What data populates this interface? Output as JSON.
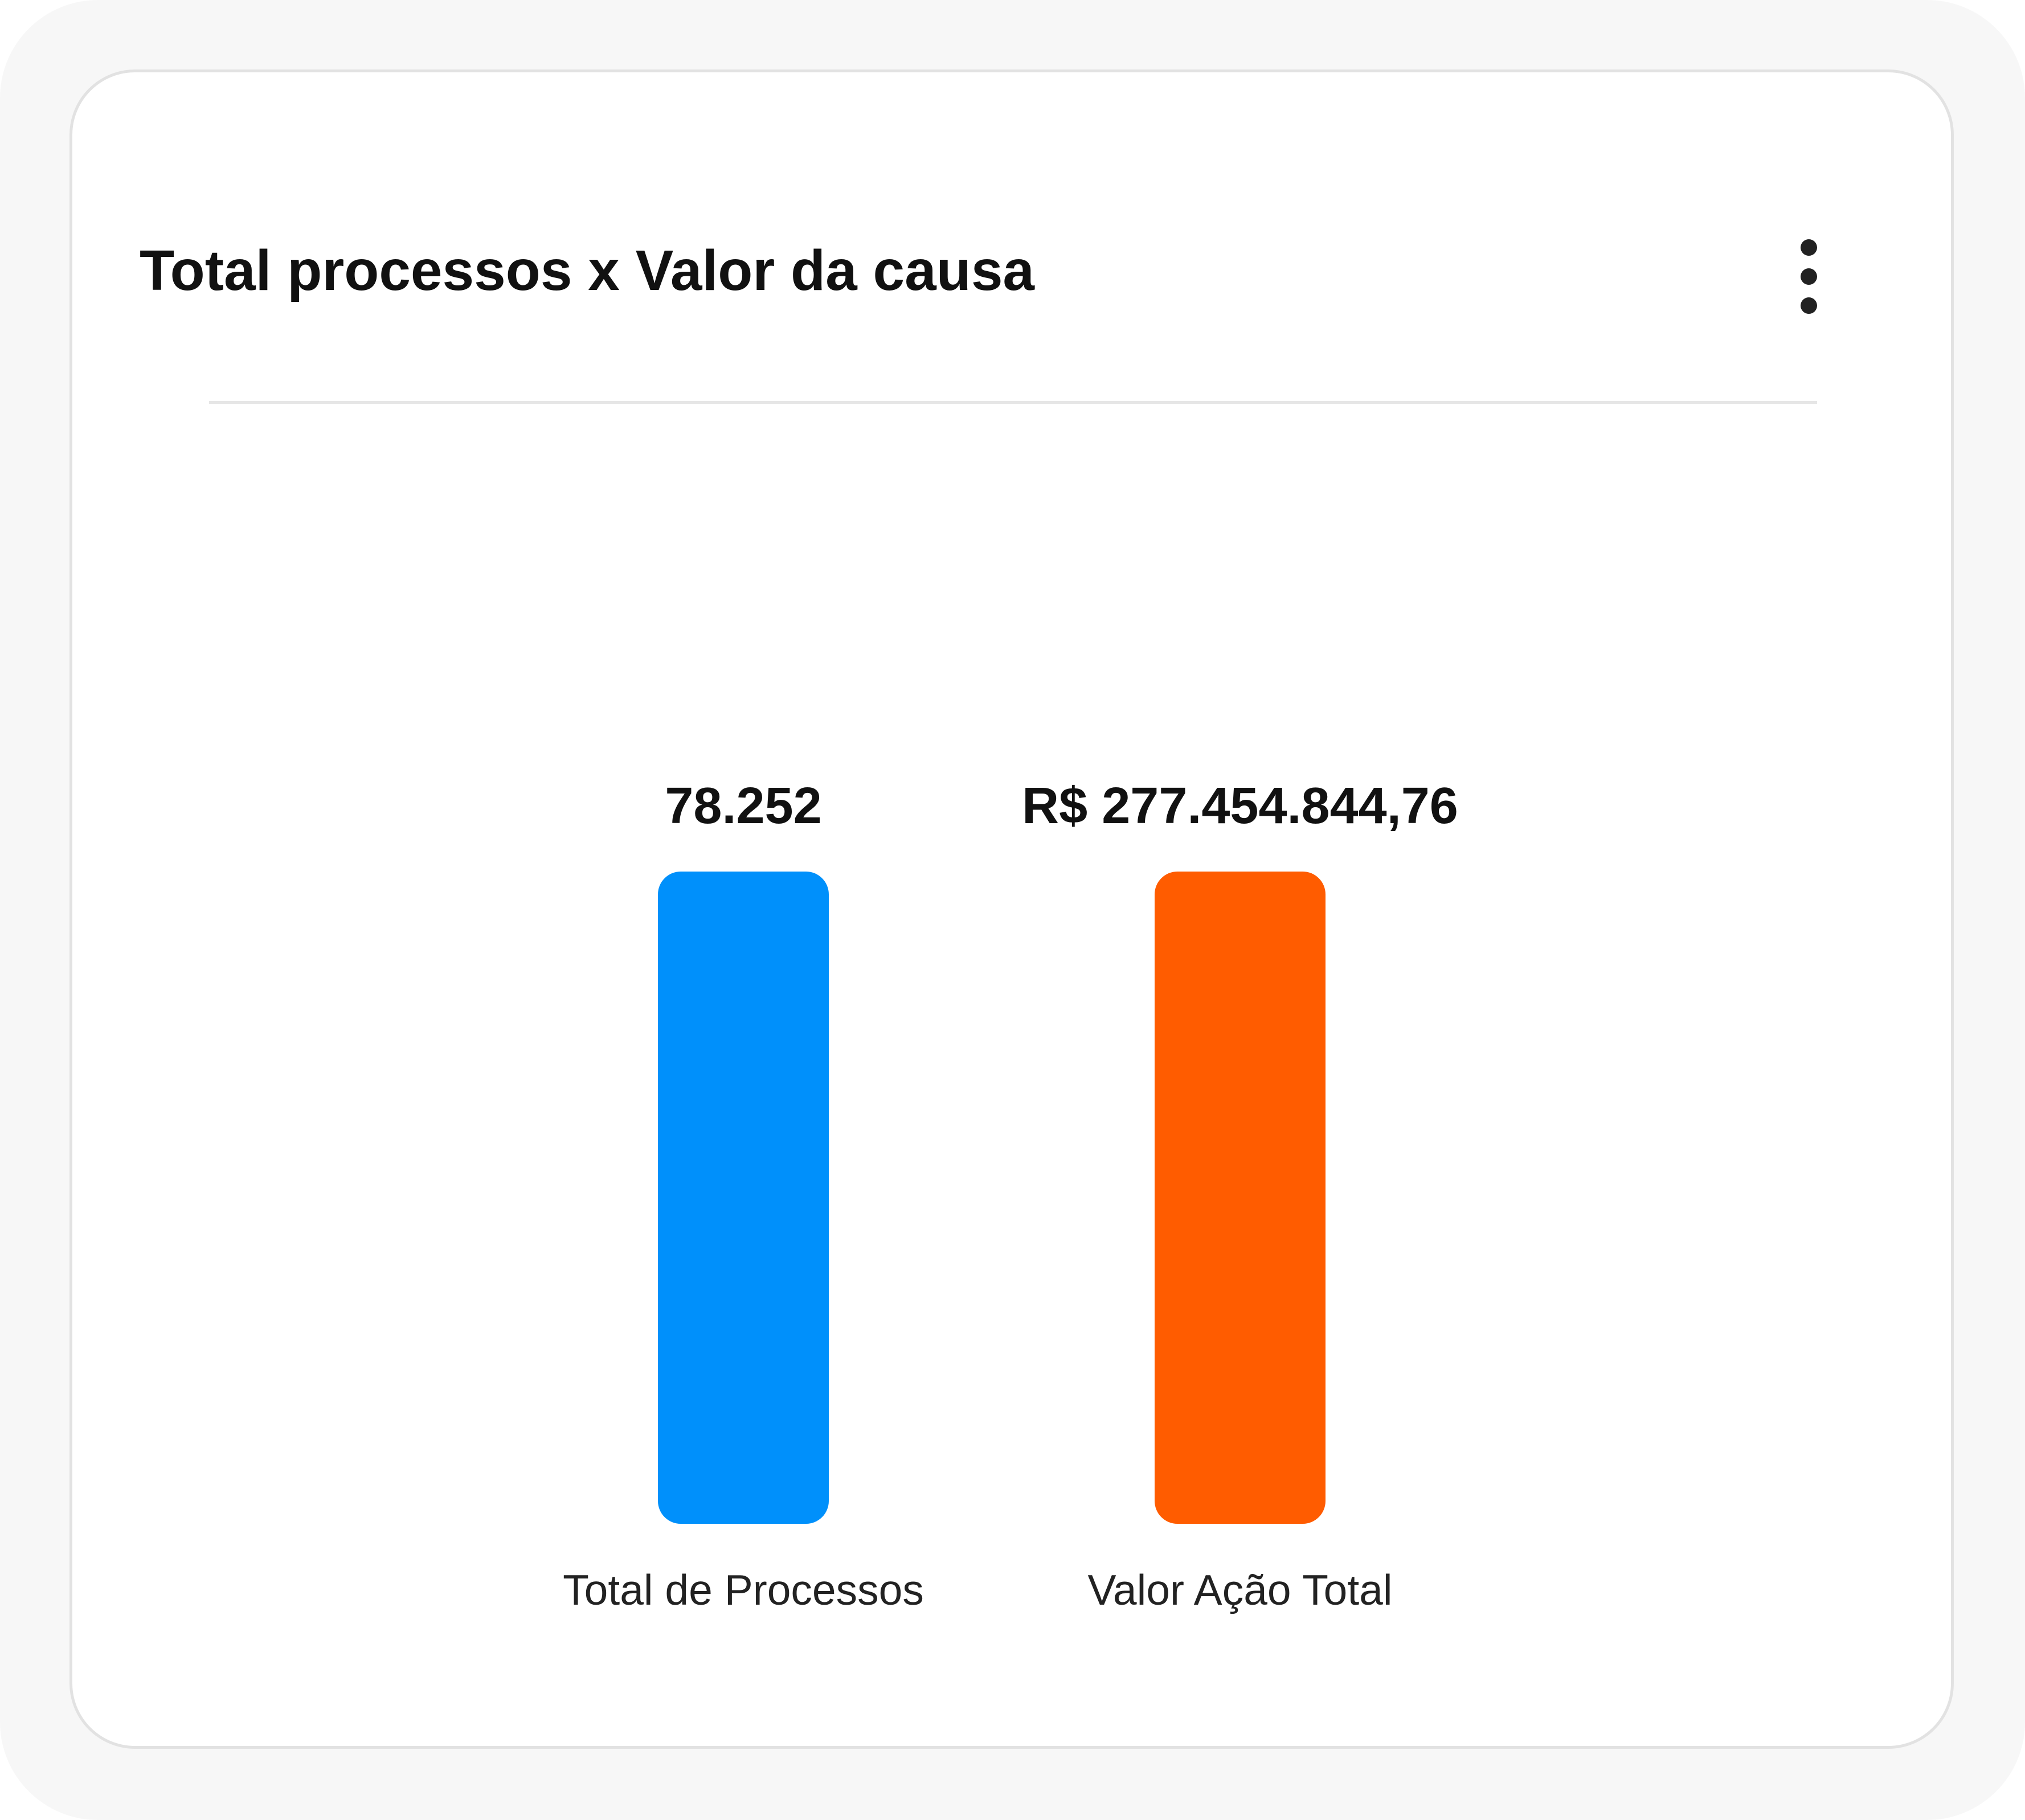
{
  "card": {
    "title": "Total processos x Valor da causa",
    "menu_icon": "more-vertical-icon"
  },
  "colors": {
    "background": "#f7f7f7",
    "card": "#ffffff",
    "bar_processos": "#0090fb",
    "bar_valor": "#ff5c00"
  },
  "chart_data": {
    "type": "bar",
    "title": "Total processos x Valor da causa",
    "categories": [
      "Total de Processos",
      "Valor Ação Total"
    ],
    "values": [
      1,
      1
    ],
    "value_labels": [
      "78.252",
      "R$ 277.454.844,76"
    ],
    "colors": [
      "#0090fb",
      "#ff5c00"
    ],
    "xlabel": "",
    "ylabel": "",
    "grid": false,
    "legend": "none"
  }
}
